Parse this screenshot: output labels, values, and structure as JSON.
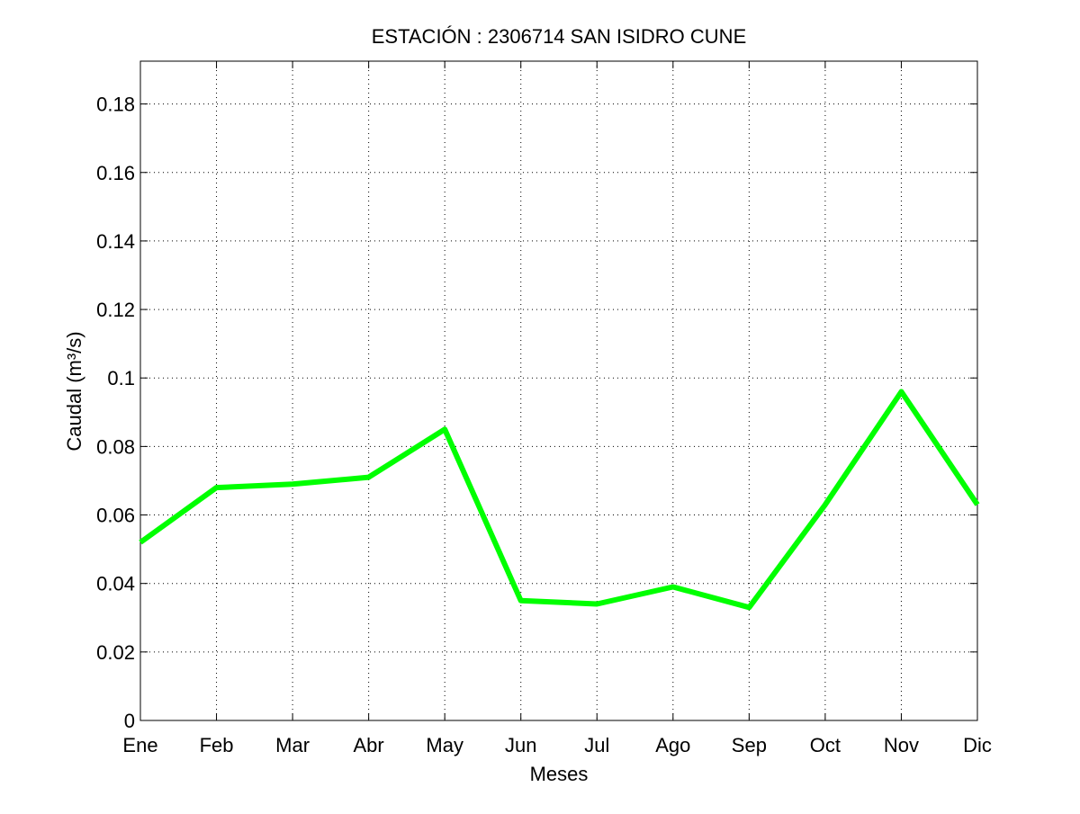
{
  "chart_data": {
    "type": "line",
    "title": "ESTACIÓN :  2306714  SAN ISIDRO CUNE",
    "xlabel": "Meses",
    "ylabel": "Caudal (m³/s)",
    "categories": [
      "Ene",
      "Feb",
      "Mar",
      "Abr",
      "May",
      "Jun",
      "Jul",
      "Ago",
      "Sep",
      "Oct",
      "Nov",
      "Dic"
    ],
    "series": [
      {
        "values": [
          0.052,
          0.068,
          0.069,
          0.071,
          0.085,
          0.035,
          0.034,
          0.039,
          0.033,
          0.063,
          0.096,
          0.063
        ],
        "color": "#00ff00"
      }
    ],
    "ylim": [
      0,
      0.1925
    ],
    "yticks": [
      0,
      0.02,
      0.04,
      0.06,
      0.08,
      0.1,
      0.12,
      0.14,
      0.16,
      0.18
    ],
    "ytick_labels": [
      "0",
      "0.02",
      "0.04",
      "0.06",
      "0.08",
      "0.1",
      "0.12",
      "0.14",
      "0.16",
      "0.18"
    ],
    "grid": true,
    "legend": "none"
  }
}
